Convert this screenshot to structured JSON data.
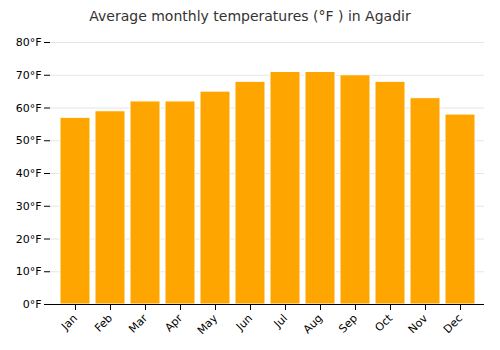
{
  "chart_data": {
    "type": "bar",
    "title": "Average monthly temperatures (°F ) in Agadir",
    "categories": [
      "Jan",
      "Feb",
      "Mar",
      "Apr",
      "May",
      "Jun",
      "Jul",
      "Aug",
      "Sep",
      "Oct",
      "Nov",
      "Dec"
    ],
    "values": [
      57,
      59,
      62,
      62,
      65,
      68,
      71,
      71,
      70,
      68,
      63,
      58
    ],
    "color": "#FFA500",
    "ylim": [
      0,
      80
    ],
    "yticks": [
      {
        "value": 0,
        "label": "0°F"
      },
      {
        "value": 10,
        "label": "10°F"
      },
      {
        "value": 20,
        "label": "20°F"
      },
      {
        "value": 30,
        "label": "30°F"
      },
      {
        "value": 40,
        "label": "40°F"
      },
      {
        "value": 50,
        "label": "50°F"
      },
      {
        "value": 60,
        "label": "60°F"
      },
      {
        "value": 70,
        "label": "70°F"
      },
      {
        "value": 80,
        "label": "80°F"
      }
    ],
    "grid": true
  }
}
